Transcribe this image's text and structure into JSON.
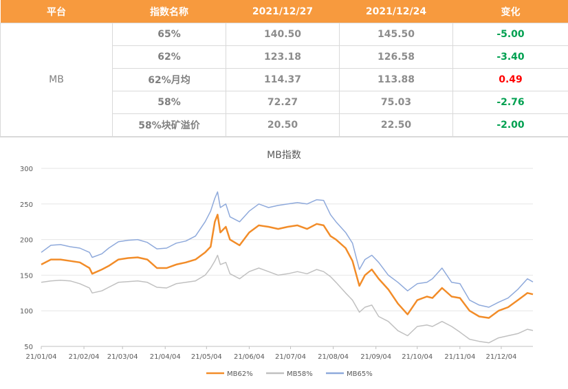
{
  "table": {
    "headers": [
      "平台",
      "指数名称",
      "2021/12/27",
      "2021/12/24",
      "变化"
    ],
    "platform": "MB",
    "rows": [
      {
        "name": "65%",
        "v1": "140.50",
        "v2": "145.50",
        "change": "-5.00",
        "dir": "neg"
      },
      {
        "name": "62%",
        "v1": "123.18",
        "v2": "126.58",
        "change": "-3.40",
        "dir": "neg"
      },
      {
        "name": "62%月均",
        "v1": "114.37",
        "v2": "113.88",
        "change": "0.49",
        "dir": "pos"
      },
      {
        "name": "58%",
        "v1": "72.27",
        "v2": "75.03",
        "change": "-2.76",
        "dir": "neg"
      },
      {
        "name": "58%块矿溢价",
        "v1": "20.50",
        "v2": "22.50",
        "change": "-2.00",
        "dir": "neg"
      }
    ]
  },
  "chart_data": {
    "type": "line",
    "title": "MB指数",
    "xlabel": "",
    "ylabel": "",
    "ylim": [
      50,
      300
    ],
    "yticks": [
      "50",
      "100",
      "150",
      "200",
      "250",
      "300"
    ],
    "xticks": [
      "21/01/04",
      "21/02/04",
      "21/03/04",
      "21/04/04",
      "21/05/04",
      "21/06/04",
      "21/07/04",
      "21/08/04",
      "21/09/04",
      "21/10/04",
      "21/11/04",
      "21/12/04"
    ],
    "x_domain": [
      "2021-01-04",
      "2021-12-27"
    ],
    "legend_position": "bottom",
    "series": [
      {
        "name": "MB62%",
        "color": "#F28C28",
        "width": 2.5,
        "points": [
          [
            "2021-01-04",
            165
          ],
          [
            "2021-01-11",
            172
          ],
          [
            "2021-01-18",
            172
          ],
          [
            "2021-01-25",
            170
          ],
          [
            "2021-02-01",
            168
          ],
          [
            "2021-02-08",
            160
          ],
          [
            "2021-02-10",
            152
          ],
          [
            "2021-02-17",
            158
          ],
          [
            "2021-02-22",
            163
          ],
          [
            "2021-03-01",
            172
          ],
          [
            "2021-03-08",
            174
          ],
          [
            "2021-03-15",
            175
          ],
          [
            "2021-03-22",
            172
          ],
          [
            "2021-03-29",
            160
          ],
          [
            "2021-04-05",
            160
          ],
          [
            "2021-04-12",
            165
          ],
          [
            "2021-04-19",
            168
          ],
          [
            "2021-04-26",
            172
          ],
          [
            "2021-05-03",
            182
          ],
          [
            "2021-05-07",
            190
          ],
          [
            "2021-05-10",
            225
          ],
          [
            "2021-05-12",
            235
          ],
          [
            "2021-05-14",
            210
          ],
          [
            "2021-05-18",
            218
          ],
          [
            "2021-05-21",
            200
          ],
          [
            "2021-05-28",
            192
          ],
          [
            "2021-06-04",
            210
          ],
          [
            "2021-06-11",
            220
          ],
          [
            "2021-06-18",
            218
          ],
          [
            "2021-06-25",
            215
          ],
          [
            "2021-07-02",
            218
          ],
          [
            "2021-07-09",
            220
          ],
          [
            "2021-07-16",
            215
          ],
          [
            "2021-07-23",
            222
          ],
          [
            "2021-07-28",
            220
          ],
          [
            "2021-08-02",
            205
          ],
          [
            "2021-08-06",
            200
          ],
          [
            "2021-08-13",
            188
          ],
          [
            "2021-08-18",
            170
          ],
          [
            "2021-08-23",
            135
          ],
          [
            "2021-08-27",
            150
          ],
          [
            "2021-09-01",
            158
          ],
          [
            "2021-09-06",
            145
          ],
          [
            "2021-09-13",
            130
          ],
          [
            "2021-09-20",
            110
          ],
          [
            "2021-09-27",
            95
          ],
          [
            "2021-10-04",
            115
          ],
          [
            "2021-10-11",
            120
          ],
          [
            "2021-10-15",
            118
          ],
          [
            "2021-10-22",
            132
          ],
          [
            "2021-10-29",
            120
          ],
          [
            "2021-11-04",
            118
          ],
          [
            "2021-11-11",
            100
          ],
          [
            "2021-11-18",
            92
          ],
          [
            "2021-11-25",
            90
          ],
          [
            "2021-12-02",
            100
          ],
          [
            "2021-12-09",
            105
          ],
          [
            "2021-12-16",
            115
          ],
          [
            "2021-12-23",
            125
          ],
          [
            "2021-12-27",
            123.18
          ]
        ]
      },
      {
        "name": "MB58%",
        "color": "#C0C0C0",
        "width": 1.5,
        "points": [
          [
            "2021-01-04",
            140
          ],
          [
            "2021-01-11",
            142
          ],
          [
            "2021-01-18",
            143
          ],
          [
            "2021-01-25",
            142
          ],
          [
            "2021-02-01",
            138
          ],
          [
            "2021-02-08",
            132
          ],
          [
            "2021-02-10",
            125
          ],
          [
            "2021-02-17",
            128
          ],
          [
            "2021-02-22",
            133
          ],
          [
            "2021-03-01",
            140
          ],
          [
            "2021-03-08",
            141
          ],
          [
            "2021-03-15",
            142
          ],
          [
            "2021-03-22",
            140
          ],
          [
            "2021-03-29",
            133
          ],
          [
            "2021-04-05",
            132
          ],
          [
            "2021-04-12",
            138
          ],
          [
            "2021-04-19",
            140
          ],
          [
            "2021-04-26",
            142
          ],
          [
            "2021-05-03",
            150
          ],
          [
            "2021-05-07",
            160
          ],
          [
            "2021-05-10",
            170
          ],
          [
            "2021-05-12",
            178
          ],
          [
            "2021-05-14",
            165
          ],
          [
            "2021-05-18",
            168
          ],
          [
            "2021-05-21",
            152
          ],
          [
            "2021-05-28",
            145
          ],
          [
            "2021-06-04",
            155
          ],
          [
            "2021-06-11",
            160
          ],
          [
            "2021-06-18",
            155
          ],
          [
            "2021-06-25",
            150
          ],
          [
            "2021-07-02",
            152
          ],
          [
            "2021-07-09",
            155
          ],
          [
            "2021-07-16",
            152
          ],
          [
            "2021-07-23",
            158
          ],
          [
            "2021-07-28",
            155
          ],
          [
            "2021-08-02",
            148
          ],
          [
            "2021-08-06",
            140
          ],
          [
            "2021-08-13",
            125
          ],
          [
            "2021-08-18",
            115
          ],
          [
            "2021-08-23",
            98
          ],
          [
            "2021-08-27",
            105
          ],
          [
            "2021-09-01",
            108
          ],
          [
            "2021-09-06",
            92
          ],
          [
            "2021-09-13",
            85
          ],
          [
            "2021-09-20",
            72
          ],
          [
            "2021-09-27",
            65
          ],
          [
            "2021-10-04",
            78
          ],
          [
            "2021-10-11",
            80
          ],
          [
            "2021-10-15",
            78
          ],
          [
            "2021-10-22",
            85
          ],
          [
            "2021-10-29",
            78
          ],
          [
            "2021-11-04",
            70
          ],
          [
            "2021-11-11",
            60
          ],
          [
            "2021-11-18",
            57
          ],
          [
            "2021-11-25",
            55
          ],
          [
            "2021-12-02",
            62
          ],
          [
            "2021-12-09",
            65
          ],
          [
            "2021-12-16",
            68
          ],
          [
            "2021-12-23",
            74
          ],
          [
            "2021-12-27",
            72.27
          ]
        ]
      },
      {
        "name": "MB65%",
        "color": "#8EA9DB",
        "width": 1.5,
        "points": [
          [
            "2021-01-04",
            182
          ],
          [
            "2021-01-11",
            192
          ],
          [
            "2021-01-18",
            193
          ],
          [
            "2021-01-25",
            190
          ],
          [
            "2021-02-01",
            188
          ],
          [
            "2021-02-08",
            182
          ],
          [
            "2021-02-10",
            175
          ],
          [
            "2021-02-17",
            180
          ],
          [
            "2021-02-22",
            188
          ],
          [
            "2021-03-01",
            197
          ],
          [
            "2021-03-08",
            199
          ],
          [
            "2021-03-15",
            200
          ],
          [
            "2021-03-22",
            196
          ],
          [
            "2021-03-29",
            187
          ],
          [
            "2021-04-05",
            188
          ],
          [
            "2021-04-12",
            195
          ],
          [
            "2021-04-19",
            198
          ],
          [
            "2021-04-26",
            205
          ],
          [
            "2021-05-03",
            225
          ],
          [
            "2021-05-07",
            240
          ],
          [
            "2021-05-10",
            258
          ],
          [
            "2021-05-12",
            267
          ],
          [
            "2021-05-14",
            245
          ],
          [
            "2021-05-18",
            250
          ],
          [
            "2021-05-21",
            232
          ],
          [
            "2021-05-28",
            225
          ],
          [
            "2021-06-04",
            240
          ],
          [
            "2021-06-11",
            250
          ],
          [
            "2021-06-18",
            245
          ],
          [
            "2021-06-25",
            248
          ],
          [
            "2021-07-02",
            250
          ],
          [
            "2021-07-09",
            252
          ],
          [
            "2021-07-16",
            250
          ],
          [
            "2021-07-23",
            256
          ],
          [
            "2021-07-28",
            255
          ],
          [
            "2021-08-02",
            235
          ],
          [
            "2021-08-06",
            225
          ],
          [
            "2021-08-13",
            210
          ],
          [
            "2021-08-18",
            195
          ],
          [
            "2021-08-23",
            158
          ],
          [
            "2021-08-27",
            172
          ],
          [
            "2021-09-01",
            178
          ],
          [
            "2021-09-06",
            168
          ],
          [
            "2021-09-13",
            150
          ],
          [
            "2021-09-20",
            140
          ],
          [
            "2021-09-27",
            128
          ],
          [
            "2021-10-04",
            138
          ],
          [
            "2021-10-11",
            140
          ],
          [
            "2021-10-15",
            145
          ],
          [
            "2021-10-22",
            160
          ],
          [
            "2021-10-29",
            140
          ],
          [
            "2021-11-04",
            138
          ],
          [
            "2021-11-11",
            115
          ],
          [
            "2021-11-18",
            108
          ],
          [
            "2021-11-25",
            105
          ],
          [
            "2021-12-02",
            112
          ],
          [
            "2021-12-09",
            118
          ],
          [
            "2021-12-16",
            130
          ],
          [
            "2021-12-23",
            145
          ],
          [
            "2021-12-27",
            140.5
          ]
        ]
      }
    ]
  }
}
